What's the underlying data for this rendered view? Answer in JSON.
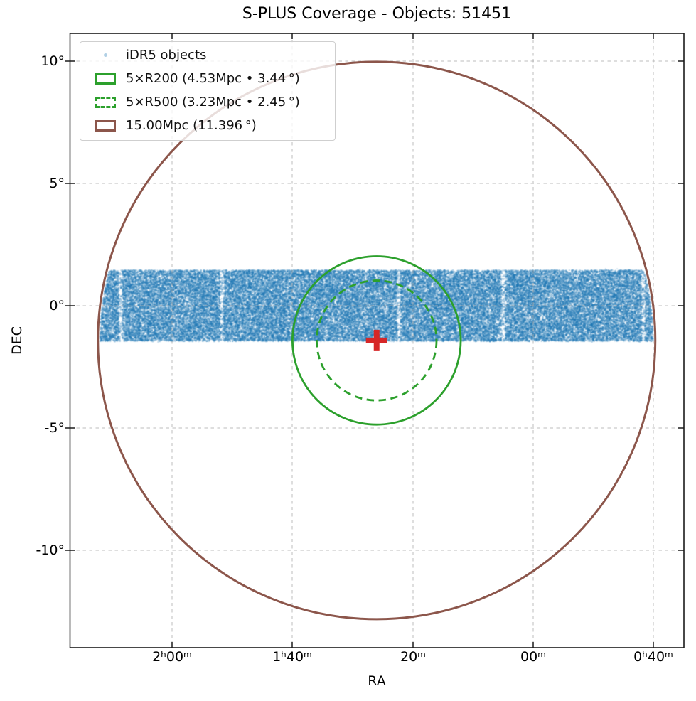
{
  "title": "S-PLUS Coverage - Objects: 51451",
  "axes": {
    "xlabel": "RA",
    "ylabel": "DEC",
    "x_ticks": [
      "2ʰ00ᵐ",
      "1ʰ40ᵐ",
      "20ᵐ",
      "00ᵐ",
      "0ʰ40ᵐ"
    ],
    "y_ticks": [
      "10°",
      "5°",
      "0°",
      "-5°",
      "-10°"
    ]
  },
  "legend": {
    "items": [
      {
        "label": "iDR5 objects",
        "swatch": "dot"
      },
      {
        "label": "5×R200 (4.53Mpc • 3.44 °)",
        "swatch": "green-solid"
      },
      {
        "label": "5×R500 (3.23Mpc • 2.45 °)",
        "swatch": "green-dashed"
      },
      {
        "label": "15.00Mpc (11.396 °)",
        "swatch": "brown-solid"
      }
    ]
  },
  "colors": {
    "scatter": "#1f77b4",
    "r200_circle": "#2ca02c",
    "r500_circle": "#2ca02c",
    "mpc15_circle": "#8c564b",
    "center_marker": "#d62728",
    "grid": "#a6a6a6",
    "frame": "#1a1a1a"
  },
  "chart_data": {
    "type": "scatter",
    "title": "S-PLUS Coverage - Objects: 51451",
    "n_objects": 51451,
    "xlabel": "RA",
    "ylabel": "DEC",
    "x_axis": {
      "tick_labels": [
        "2h00m",
        "1h40m",
        "20m",
        "00m",
        "0h40m"
      ],
      "tick_ra_deg": [
        30,
        25,
        20,
        15,
        10
      ],
      "range_ra_deg": [
        34.25,
        8.7
      ],
      "note": "RA increases to the left"
    },
    "y_axis": {
      "tick_labels": [
        "10°",
        "5°",
        "0°",
        "-5°",
        "-10°"
      ],
      "tick_dec_deg": [
        10,
        5,
        0,
        -5,
        -10
      ],
      "range_dec_deg": [
        -13.9,
        11.1
      ]
    },
    "grid": true,
    "legend_position": "upper left",
    "center_marker": {
      "symbol": "plus",
      "ra_deg": 21.5,
      "dec_deg": -1.42,
      "color": "#d62728"
    },
    "scatter_band": {
      "name": "iDR5 objects",
      "color": "#1f77b4",
      "alpha": 0.3,
      "dec_min": -1.45,
      "dec_max": 1.45,
      "clip_radius_deg": 11.396,
      "n_points": 51451
    },
    "circles": [
      {
        "name": "5×R200",
        "radius_mpc": 4.53,
        "radius_deg": 3.44,
        "color": "#2ca02c",
        "linestyle": "solid"
      },
      {
        "name": "5×R500",
        "radius_mpc": 3.23,
        "radius_deg": 2.45,
        "color": "#2ca02c",
        "linestyle": "dashed"
      },
      {
        "name": "15.00Mpc",
        "radius_mpc": 15.0,
        "radius_deg": 11.396,
        "color": "#8c564b",
        "linestyle": "solid"
      }
    ]
  }
}
